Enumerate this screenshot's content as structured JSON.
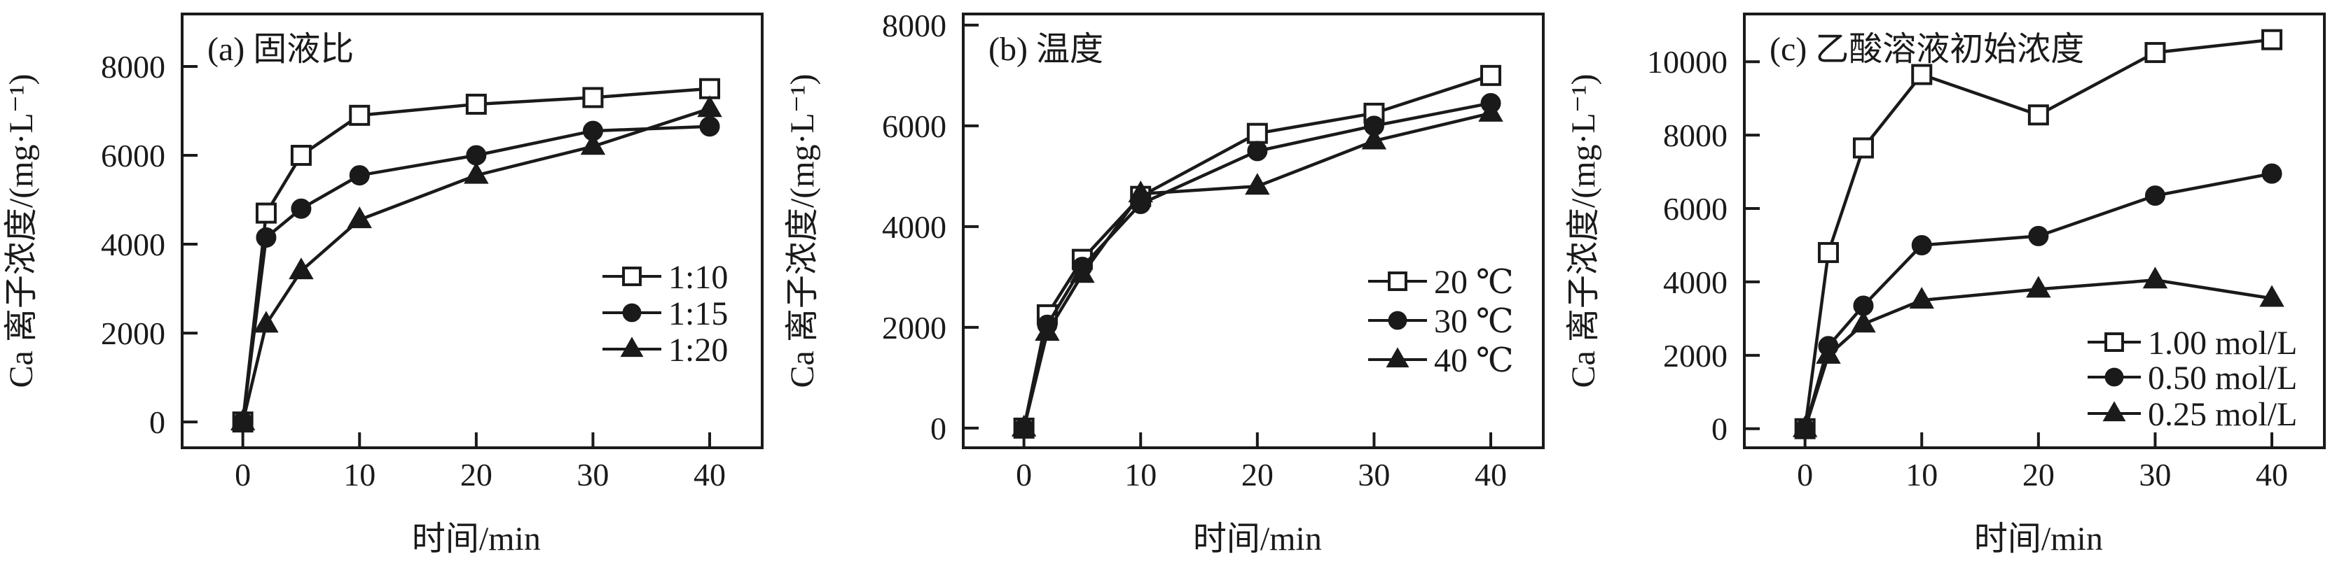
{
  "figure": {
    "background": "#ffffff",
    "ink_color": "#1a1a1a",
    "xlabel": "时间/min",
    "ylabel": "Ca 离子浓度/(mg·L⁻¹)"
  },
  "chart_data": [
    {
      "type": "line",
      "panel": "a",
      "title": "(a) 固液比",
      "xlabel": "时间/min",
      "ylabel": "Ca 离子浓度/(mg·L⁻¹)",
      "x": [
        0,
        2,
        5,
        10,
        20,
        30,
        40
      ],
      "series": [
        {
          "name": "1:10",
          "marker": "square-open",
          "values": [
            0,
            4700,
            6000,
            6900,
            7150,
            7300,
            7500
          ]
        },
        {
          "name": "1:15",
          "marker": "circle-filled",
          "values": [
            0,
            4150,
            4800,
            5550,
            6000,
            6550,
            6650
          ]
        },
        {
          "name": "1:20",
          "marker": "triangle-filled",
          "values": [
            0,
            2200,
            3400,
            4550,
            5550,
            6200,
            7050
          ]
        }
      ],
      "xticks": [
        0,
        10,
        20,
        30,
        40
      ],
      "yticks": [
        0,
        2000,
        4000,
        6000,
        8000
      ],
      "xlim": [
        -5.2,
        44.5
      ],
      "ylim": [
        -580,
        9180
      ],
      "grid": false,
      "legend_position": "inside-right-middle"
    },
    {
      "type": "line",
      "panel": "b",
      "title": "(b) 温度",
      "xlabel": "时间/min",
      "ylabel": "Ca 离子浓度/(mg·L⁻¹)",
      "x": [
        0,
        2,
        5,
        10,
        20,
        30,
        40
      ],
      "series": [
        {
          "name": "20 ℃",
          "marker": "square-open",
          "values": [
            0,
            2250,
            3350,
            4600,
            5850,
            6250,
            7000
          ]
        },
        {
          "name": "30 ℃",
          "marker": "circle-filled",
          "values": [
            0,
            2050,
            3200,
            4450,
            5500,
            6000,
            6450
          ]
        },
        {
          "name": "40 ℃",
          "marker": "triangle-filled",
          "values": [
            0,
            1900,
            3050,
            4650,
            4800,
            5700,
            6250
          ]
        }
      ],
      "xticks": [
        0,
        10,
        20,
        30,
        40
      ],
      "yticks": [
        0,
        2000,
        4000,
        6000,
        8000
      ],
      "xlim": [
        -5.2,
        44.5
      ],
      "ylim": [
        -390,
        8220
      ],
      "grid": false,
      "legend_position": "inside-right-middle"
    },
    {
      "type": "line",
      "panel": "c",
      "title": "(c) 乙酸溶液初始浓度",
      "xlabel": "时间/min",
      "ylabel": "Ca 离子浓度/(mg·L⁻¹)",
      "x": [
        0,
        2,
        5,
        10,
        20,
        30,
        40
      ],
      "series": [
        {
          "name": "1.00 mol/L",
          "marker": "square-open",
          "values": [
            0,
            4800,
            7650,
            9650,
            8550,
            10250,
            10600
          ]
        },
        {
          "name": "0.50 mol/L",
          "marker": "circle-filled",
          "values": [
            0,
            2250,
            3350,
            5000,
            5250,
            6350,
            6950
          ]
        },
        {
          "name": "0.25 mol/L",
          "marker": "triangle-filled",
          "values": [
            0,
            2000,
            2850,
            3500,
            3800,
            4050,
            3550
          ]
        }
      ],
      "xticks": [
        0,
        10,
        20,
        30,
        40
      ],
      "yticks": [
        0,
        2000,
        4000,
        6000,
        8000,
        10000
      ],
      "xlim": [
        -5.2,
        44.5
      ],
      "ylim": [
        -520,
        11300
      ],
      "grid": false,
      "legend_position": "inside-right-lower"
    }
  ]
}
